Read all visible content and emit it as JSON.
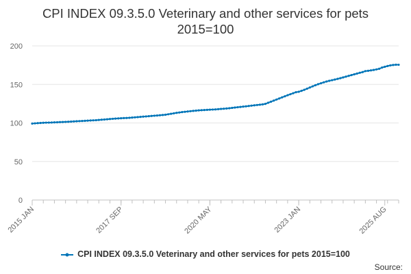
{
  "chart_data": {
    "type": "line",
    "title_line1": "CPI INDEX 09.3.5.0 Veterinary and other services for pets",
    "title_line2": "2015=100",
    "xlabel": "",
    "ylabel": "",
    "ylim": [
      0,
      200
    ],
    "yticks": [
      "0",
      "50",
      "100",
      "150",
      "200"
    ],
    "xtick_labels": [
      "2015 JAN",
      "2017 SEP",
      "2020 MAY",
      "2023 JAN",
      "2025 AUG"
    ],
    "grid": true,
    "legend_position": "bottom",
    "series_color": "#0075b8",
    "series": [
      {
        "name": "CPI INDEX 09.3.5.0 Veterinary and other services for pets 2015=100",
        "x_start": "2015 JAN",
        "x_end": "2025 AUG",
        "frequency": "monthly",
        "values": [
          99.2,
          99.5,
          99.8,
          100.0,
          100.2,
          100.4,
          100.5,
          100.6,
          100.8,
          100.9,
          101.1,
          101.2,
          101.4,
          101.6,
          101.8,
          102.0,
          102.2,
          102.4,
          102.6,
          102.8,
          103.0,
          103.2,
          103.4,
          103.6,
          103.9,
          104.2,
          104.5,
          104.8,
          105.1,
          105.4,
          105.7,
          105.9,
          106.1,
          106.3,
          106.5,
          106.7,
          107.0,
          107.3,
          107.6,
          107.9,
          108.2,
          108.5,
          108.8,
          109.1,
          109.4,
          109.7,
          110.0,
          110.3,
          110.7,
          111.3,
          111.9,
          112.5,
          113.1,
          113.6,
          114.1,
          114.5,
          114.9,
          115.3,
          115.7,
          116.0,
          116.3,
          116.6,
          116.8,
          117.0,
          117.2,
          117.4,
          117.6,
          117.9,
          118.2,
          118.5,
          118.8,
          119.1,
          119.6,
          120.0,
          120.4,
          120.8,
          121.2,
          121.6,
          122.0,
          122.5,
          122.9,
          123.3,
          123.7,
          124.1,
          124.8,
          126.2,
          127.6,
          129.0,
          130.4,
          131.8,
          133.2,
          134.6,
          136.0,
          137.3,
          138.6,
          139.9,
          140.5,
          141.7,
          143.0,
          144.5,
          146.0,
          147.5,
          149.0,
          150.3,
          151.5,
          152.7,
          153.8,
          154.7,
          155.5,
          156.3,
          157.2,
          158.1,
          159.1,
          160.1,
          161.1,
          162.1,
          163.1,
          164.1,
          165.1,
          166.0,
          167.3,
          167.7,
          168.2,
          168.8,
          169.5,
          170.3,
          171.9,
          172.9,
          173.9,
          174.7,
          175.2,
          175.6,
          175.5
        ]
      }
    ]
  },
  "source_label": "Source:"
}
